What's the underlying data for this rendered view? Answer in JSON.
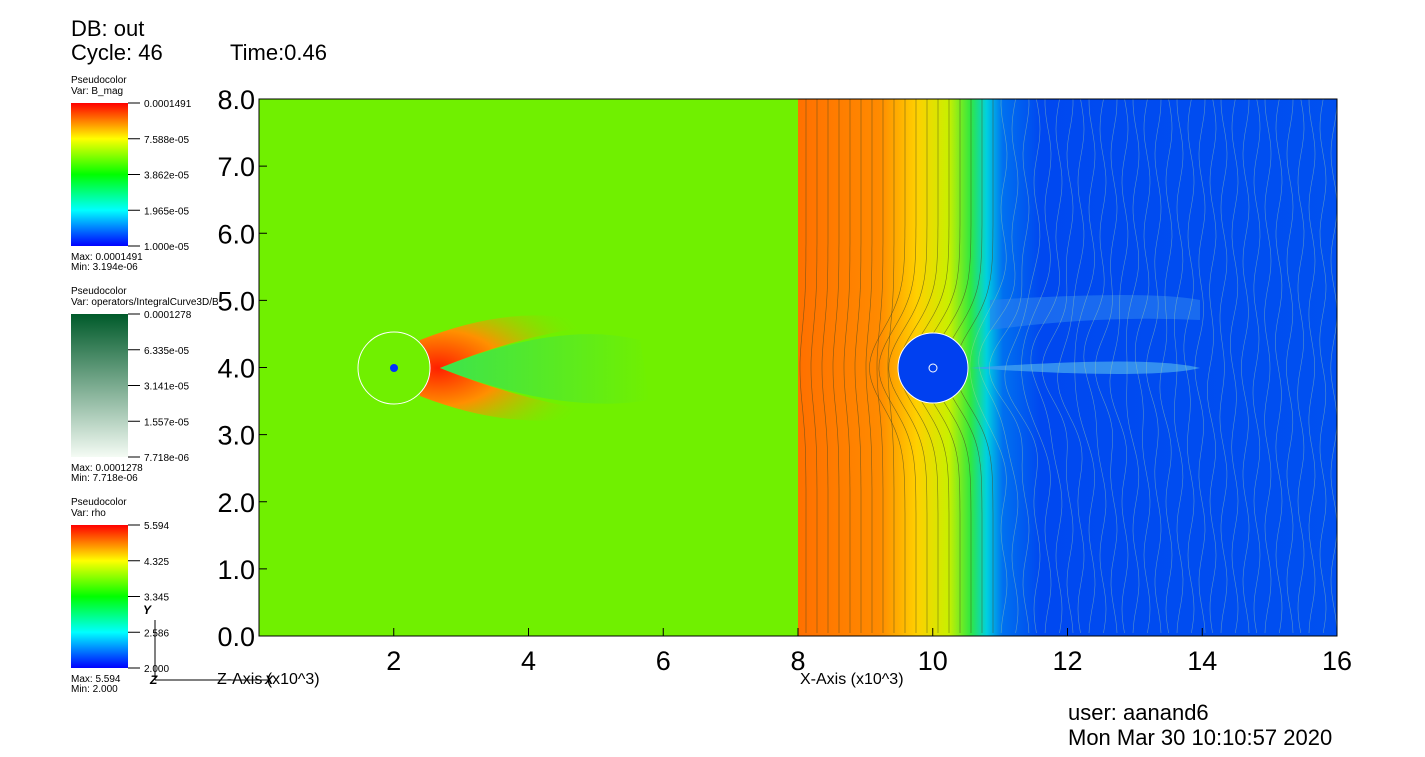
{
  "header": {
    "db": "DB: out",
    "cycle": "Cycle: 46",
    "time": "Time:0.46"
  },
  "legends": [
    {
      "title": "Pseudocolor",
      "var": "Var: B_mag",
      "ticks": [
        "0.0001491",
        "7.588e-05",
        "3.862e-05",
        "1.965e-05",
        "1.000e-05"
      ],
      "max": "Max:  0.0001491",
      "min": "Min:  3.194e-06"
    },
    {
      "title": "Pseudocolor",
      "var": "Var: operators/IntegralCurve3D/B",
      "ticks": [
        "0.0001278",
        "6.335e-05",
        "3.141e-05",
        "1.557e-05",
        "7.718e-06"
      ],
      "max": "Max:  0.0001278",
      "min": "Min:  7.718e-06"
    },
    {
      "title": "Pseudocolor",
      "var": "Var: rho",
      "ticks": [
        "5.594",
        "4.325",
        "3.345",
        "2.586",
        "2.000"
      ],
      "max": "Max:  5.594",
      "min": "Min:  2.000"
    }
  ],
  "plot": {
    "xlim": [
      0,
      16
    ],
    "ylim": [
      0,
      8
    ],
    "xticks": [
      2,
      4,
      6,
      8,
      10,
      12,
      14,
      16
    ],
    "yticks": [
      {
        "value": 0,
        "label": "0.0"
      },
      {
        "value": 1,
        "label": "1.0"
      },
      {
        "value": 2,
        "label": "2.0"
      },
      {
        "value": 3,
        "label": "3.0"
      },
      {
        "value": 4,
        "label": "4.0"
      },
      {
        "value": 5,
        "label": "5.0"
      },
      {
        "value": 6,
        "label": "6.0"
      },
      {
        "value": 7,
        "label": "7.0"
      },
      {
        "value": 8,
        "label": "8.0"
      }
    ],
    "xlabel_left": "Z-Axis (x10^3)",
    "xlabel_right": "X-Axis (x10^3)",
    "triad": [
      "Y",
      "Z",
      "X"
    ]
  },
  "footer": {
    "user": "user: aanand6",
    "date": "Mon Mar 30 10:10:57 2020"
  }
}
